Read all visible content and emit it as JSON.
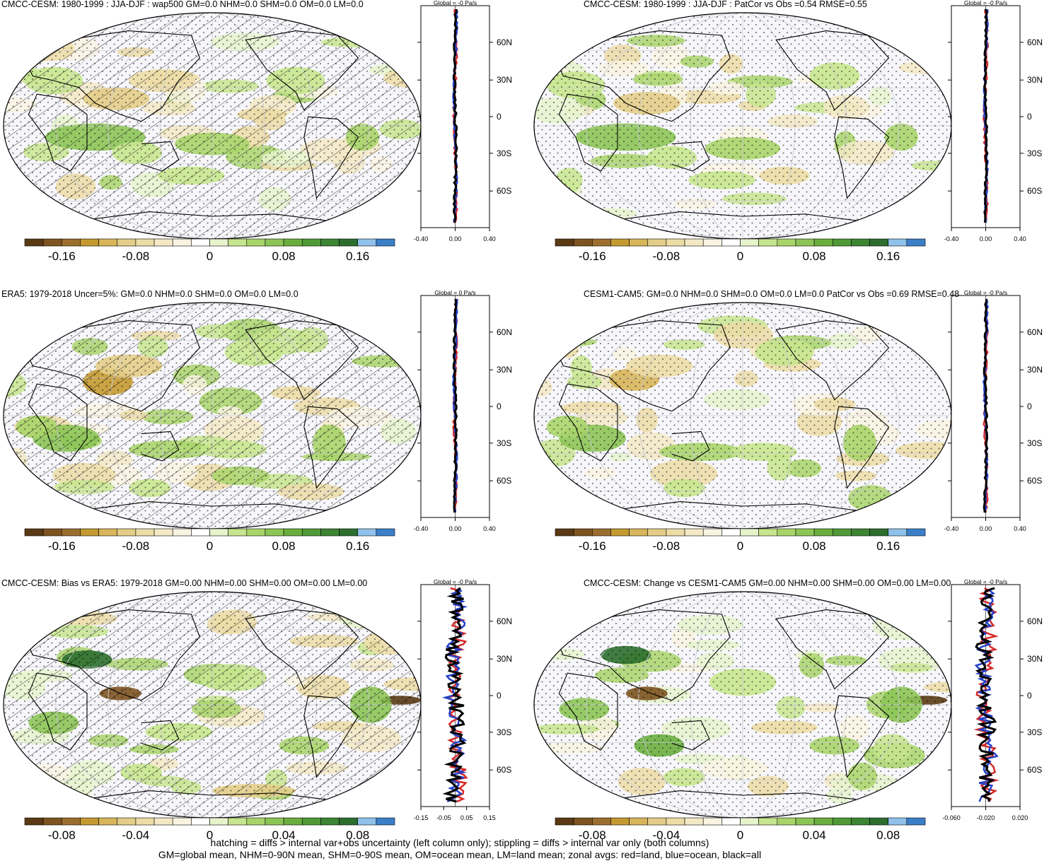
{
  "panels": [
    {
      "title": "CMCC-CESM: 1980-1999 : JJA-DJF : wap500 GM=0.0 NHM=0.0 SHM=0.0 OM=0.0 LM=0.0",
      "zonal_header": "Global = -0 Pa/s",
      "hatched": true,
      "colorbar_ticks": [
        "-0.16",
        "-0.08",
        "0",
        "0.08",
        "0.16"
      ],
      "zonal_ticks": [
        "-0.40",
        "0.00",
        "0.40"
      ]
    },
    {
      "title": "CMCC-CESM: 1980-1999 : JJA-DJF : PatCor vs Obs =0.54 RMSE=0.55",
      "zonal_header": "Global = -0 Pa/s",
      "hatched": false,
      "colorbar_ticks": [
        "-0.16",
        "-0.08",
        "0",
        "0.08",
        "0.16"
      ],
      "zonal_ticks": [
        "-0.40",
        "0.00",
        "0.40"
      ]
    },
    {
      "title": "ERA5: 1979-2018 Uncer=5%: GM=0.0 NHM=0.0 SHM=0.0 OM=0.0 LM=0.0",
      "zonal_header": "Global = 0 Pa/s",
      "hatched": true,
      "colorbar_ticks": [
        "-0.16",
        "-0.08",
        "0",
        "0.08",
        "0.16"
      ],
      "zonal_ticks": [
        "-0.40",
        "0.00",
        "0.40"
      ]
    },
    {
      "title": "CESM1-CAM5: GM=0.0 NHM=0.0 SHM=0.0 OM=0.0 LM=0.0 PatCor vs Obs =0.69 RMSE=0.48",
      "zonal_header": "Global = -0 Pa/s",
      "hatched": false,
      "colorbar_ticks": [
        "-0.16",
        "-0.08",
        "0",
        "0.08",
        "0.16"
      ],
      "zonal_ticks": [
        "-0.40",
        "0.00",
        "0.40"
      ]
    },
    {
      "title": "CMCC-CESM: Bias vs ERA5: 1979-2018 GM=0.00 NHM=0.00 SHM=0.00 OM=0.00 LM=0.00",
      "zonal_header": "Global = -0 Pa/s",
      "hatched": true,
      "colorbar_ticks": [
        "-0.08",
        "-0.04",
        "0",
        "0.04",
        "0.08"
      ],
      "zonal_ticks": [
        "-0.15",
        "-0.05",
        "0.05",
        "0.15"
      ]
    },
    {
      "title": "CMCC-CESM: Change vs CESM1-CAM5 GM=0.00 NHM=0.00 SHM=0.00 OM=0.00 LM=0.00",
      "zonal_header": "Global = -0 Pa/s",
      "hatched": false,
      "colorbar_ticks": [
        "-0.08",
        "-0.04",
        "0",
        "0.04",
        "0.08"
      ],
      "zonal_ticks": [
        "-0.060",
        "-0.020",
        "0.020"
      ]
    }
  ],
  "lat_labels": [
    "60N",
    "30N",
    "0",
    "30S",
    "60S"
  ],
  "colors": {
    "palette": [
      "#5a3a14",
      "#7d5320",
      "#9c6e2e",
      "#c49a30",
      "#d7b55a",
      "#e3cd88",
      "#ecdca6",
      "#f3e9c6",
      "#f9f3e2",
      "#ffffff",
      "#e6f3cc",
      "#c7e58e",
      "#a9d46a",
      "#8cc456",
      "#6aae3f",
      "#4f9a37",
      "#3c8533",
      "#2c6e2e",
      "#8fc1ea",
      "#3b7fc8"
    ],
    "land": "#d62a2a",
    "ocean": "#2341c8",
    "all": "#000000"
  },
  "footer": {
    "line1": "hatching = diffs > internal var+obs uncertainty (left column only); stippling = diffs > internal var only (both columns)",
    "line2": "GM=global mean, NHM=0-90N mean, SHM=0-90S mean, OM=ocean mean, LM=land mean; zonal avgs: red=land, blue=ocean, black=all"
  }
}
